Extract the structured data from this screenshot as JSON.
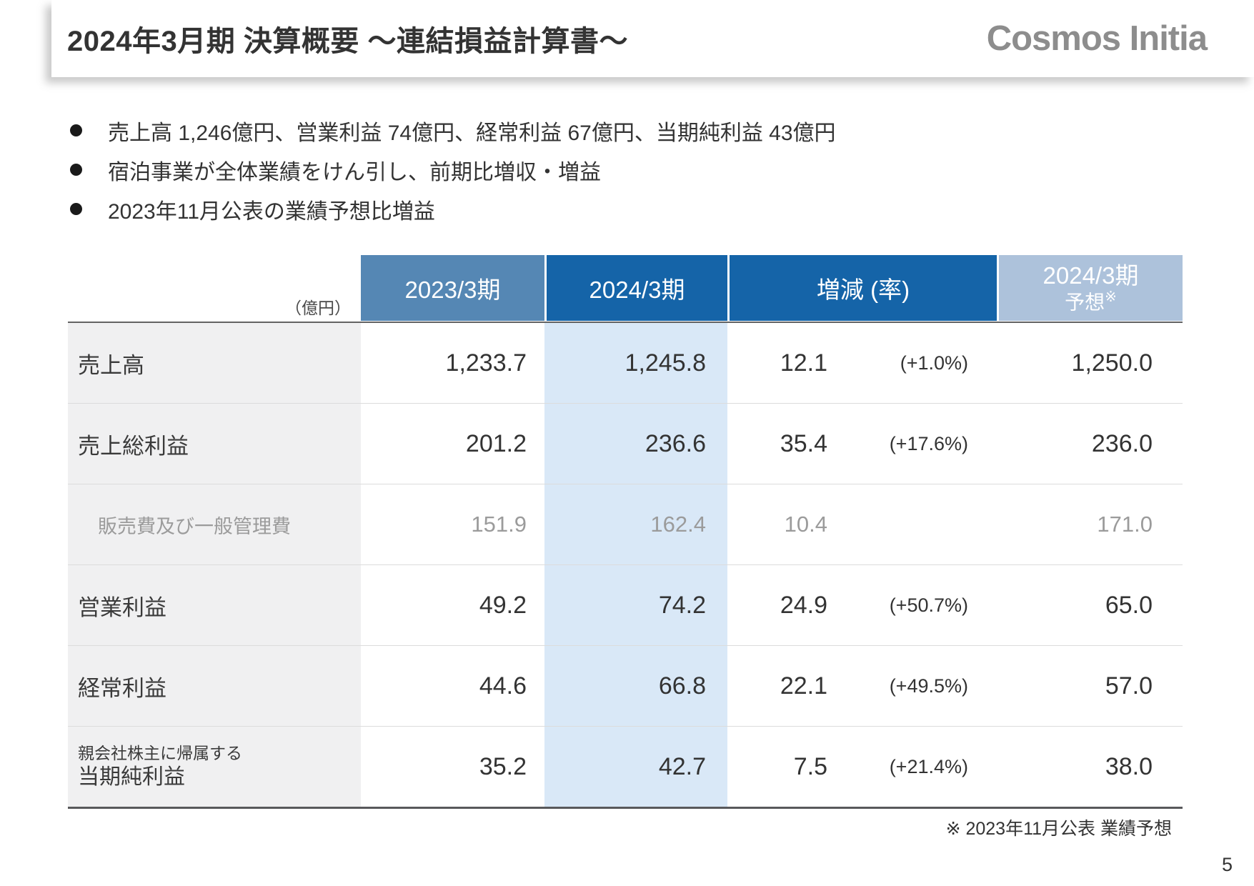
{
  "header": {
    "title": "2024年3月期 決算概要 〜連結損益計算書〜",
    "logo": "Cosmos Initia"
  },
  "bullets": [
    "売上高 1,246億円、営業利益 74億円、経常利益 67億円、当期純利益 43億円",
    "宿泊事業が全体業績をけん引し、前期比増収・増益",
    "2023年11月公表の業績予想比増益"
  ],
  "table": {
    "unit_label": "（億円）",
    "columns": [
      {
        "label": "2023/3期"
      },
      {
        "label": "2024/3期"
      },
      {
        "label": "増減 (率)"
      },
      {
        "label": "2024/3期",
        "sublabel": "予想",
        "sublabel_sup": "※"
      }
    ],
    "rows": [
      {
        "label": "売上高",
        "fy2023": "1,233.7",
        "fy2024": "1,245.8",
        "change": "12.1",
        "change_pct": "(+1.0%)",
        "forecast": "1,250.0"
      },
      {
        "label": "売上総利益",
        "fy2023": "201.2",
        "fy2024": "236.6",
        "change": "35.4",
        "change_pct": "(+17.6%)",
        "forecast": "236.0"
      },
      {
        "label": "販売費及び一般管理費",
        "fy2023": "151.9",
        "fy2024": "162.4",
        "change": "10.4",
        "change_pct": "",
        "forecast": "171.0"
      },
      {
        "label": "営業利益",
        "fy2023": "49.2",
        "fy2024": "74.2",
        "change": "24.9",
        "change_pct": "(+50.7%)",
        "forecast": "65.0"
      },
      {
        "label": "経常利益",
        "fy2023": "44.6",
        "fy2024": "66.8",
        "change": "22.1",
        "change_pct": "(+49.5%)",
        "forecast": "57.0"
      },
      {
        "label_small": "親会社株主に帰属する",
        "label": "当期純利益",
        "fy2023": "35.2",
        "fy2024": "42.7",
        "change": "7.5",
        "change_pct": "(+21.4%)",
        "forecast": "38.0"
      }
    ]
  },
  "footnote": "※ 2023年11月公表 業績予想",
  "page_number": "5",
  "colors": {
    "header_past": "#5587b4",
    "header_current": "#1564a8",
    "header_forecast": "#adc2db",
    "highlight_column": "#d9e8f7",
    "label_column": "#f0f0f1",
    "muted_text": "#9b9b9b",
    "logo_gray": "#8d8d8d"
  }
}
